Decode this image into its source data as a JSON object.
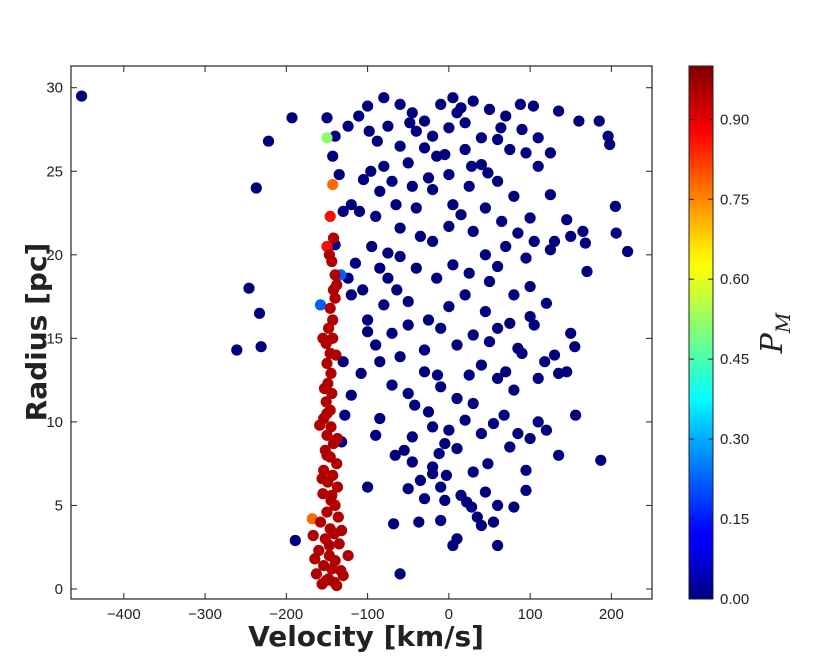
{
  "chart_data": {
    "type": "scatter",
    "xlabel": "Velocity [km/s]",
    "ylabel": "Radius [pc]",
    "xlim": [
      -465,
      250
    ],
    "ylim": [
      -0.6,
      31.3
    ],
    "x_ticks": [
      -400,
      -300,
      -200,
      -100,
      0,
      100,
      200
    ],
    "x_tick_labels": [
      "−400",
      "−300",
      "−200",
      "−100",
      "0",
      "100",
      "200"
    ],
    "y_ticks": [
      0,
      5,
      10,
      15,
      20,
      25,
      30
    ],
    "y_tick_labels": [
      "0",
      "5",
      "10",
      "15",
      "20",
      "25",
      "30"
    ],
    "grid": false,
    "colorbar": {
      "label": "P",
      "label_subscript": "M",
      "colormap": "jet",
      "range": [
        0,
        1
      ],
      "ticks": [
        0.0,
        0.15,
        0.3,
        0.45,
        0.6,
        0.75,
        0.9
      ],
      "tick_labels": [
        "0.00",
        "0.15",
        "0.30",
        "0.45",
        "0.60",
        "0.75",
        "0.90"
      ]
    },
    "series": [
      {
        "color_value": 0.0,
        "color": "#00007f",
        "points": [
          [
            -452,
            29.5
          ],
          [
            -193,
            28.2
          ],
          [
            -222,
            26.8
          ],
          [
            -237,
            24.0
          ],
          [
            -246,
            18.0
          ],
          [
            -233,
            16.5
          ],
          [
            -261,
            14.3
          ],
          [
            -231,
            14.5
          ],
          [
            -189,
            2.9
          ],
          [
            -60,
            0.9
          ],
          [
            -68,
            3.9
          ],
          [
            -37,
            4.0
          ],
          [
            60,
            2.6
          ],
          [
            40,
            3.8
          ],
          [
            35,
            4.3
          ],
          [
            55,
            4.0
          ],
          [
            28,
            4.9
          ],
          [
            -50,
            6.0
          ],
          [
            -45,
            7.6
          ],
          [
            -10,
            6.1
          ],
          [
            10,
            3.0
          ],
          [
            5,
            2.6
          ],
          [
            -100,
            6.1
          ],
          [
            80,
            4.9
          ],
          [
            95,
            5.9
          ],
          [
            95,
            7.1
          ],
          [
            135,
            8.0
          ],
          [
            187,
            7.7
          ],
          [
            156,
            10.4
          ],
          [
            110,
            10.0
          ],
          [
            100,
            9.0
          ],
          [
            75,
            8.5
          ],
          [
            60,
            5.0
          ],
          [
            45,
            5.8
          ],
          [
            22,
            5.2
          ],
          [
            -3,
            6.8
          ],
          [
            -12,
            8.1
          ],
          [
            -20,
            9.7
          ],
          [
            -66,
            8.0
          ],
          [
            -42,
            11.0
          ],
          [
            -132,
            8.8
          ],
          [
            -128,
            10.4
          ],
          [
            -120,
            11.6
          ],
          [
            -90,
            9.2
          ],
          [
            -85,
            13.6
          ],
          [
            -70,
            12.2
          ],
          [
            -60,
            13.9
          ],
          [
            -50,
            11.7
          ],
          [
            -30,
            13.0
          ],
          [
            -10,
            12.1
          ],
          [
            10,
            11.4
          ],
          [
            25,
            12.8
          ],
          [
            40,
            13.4
          ],
          [
            60,
            12.6
          ],
          [
            80,
            11.9
          ],
          [
            110,
            12.6
          ],
          [
            135,
            12.9
          ],
          [
            150,
            15.3
          ],
          [
            118,
            13.6
          ],
          [
            105,
            15.8
          ],
          [
            130,
            14.0
          ],
          [
            155,
            14.5
          ],
          [
            170,
            19.0
          ],
          [
            125,
            20.3
          ],
          [
            95,
            19.8
          ],
          [
            70,
            20.5
          ],
          [
            50,
            18.4
          ],
          [
            20,
            17.6
          ],
          [
            0,
            16.9
          ],
          [
            -25,
            16.1
          ],
          [
            -50,
            17.2
          ],
          [
            -75,
            18.6
          ],
          [
            -100,
            16.1
          ],
          [
            -120,
            17.6
          ],
          [
            -130,
            13.6
          ],
          [
            -108,
            12.9
          ],
          [
            -106,
            17.9
          ],
          [
            -95,
            20.5
          ],
          [
            -90,
            22.3
          ],
          [
            -110,
            22.6
          ],
          [
            -120,
            23.0
          ],
          [
            -105,
            24.5
          ],
          [
            -80,
            25.3
          ],
          [
            -60,
            26.5
          ],
          [
            -40,
            27.4
          ],
          [
            -30,
            28.0
          ],
          [
            -10,
            29.0
          ],
          [
            10,
            28.5
          ],
          [
            30,
            29.2
          ],
          [
            50,
            28.7
          ],
          [
            70,
            28.3
          ],
          [
            90,
            27.5
          ],
          [
            110,
            27.0
          ],
          [
            135,
            28.6
          ],
          [
            160,
            28.0
          ],
          [
            185,
            28.0
          ],
          [
            196,
            27.1
          ],
          [
            198,
            26.6
          ],
          [
            125,
            26.1
          ],
          [
            110,
            25.3
          ],
          [
            125,
            23.6
          ],
          [
            145,
            22.1
          ],
          [
            165,
            21.4
          ],
          [
            205,
            22.9
          ],
          [
            206,
            21.3
          ],
          [
            220,
            20.2
          ],
          [
            168,
            20.7
          ],
          [
            150,
            21.1
          ],
          [
            130,
            20.8
          ],
          [
            100,
            22.2
          ],
          [
            80,
            23.5
          ],
          [
            60,
            24.4
          ],
          [
            40,
            25.4
          ],
          [
            20,
            26.3
          ],
          [
            0,
            24.8
          ],
          [
            -20,
            23.9
          ],
          [
            -40,
            22.8
          ],
          [
            -60,
            21.6
          ],
          [
            -75,
            20.1
          ],
          [
            -85,
            19.2
          ],
          [
            -64,
            17.9
          ],
          [
            -40,
            19.2
          ],
          [
            -20,
            20.8
          ],
          [
            0,
            21.7
          ],
          [
            15,
            22.4
          ],
          [
            30,
            21.4
          ],
          [
            45,
            20.0
          ],
          [
            60,
            19.3
          ],
          [
            80,
            17.6
          ],
          [
            100,
            18.1
          ],
          [
            120,
            17.1
          ],
          [
            100,
            16.3
          ],
          [
            85,
            14.4
          ],
          [
            70,
            13.0
          ],
          [
            50,
            14.8
          ],
          [
            30,
            15.2
          ],
          [
            10,
            14.6
          ],
          [
            -10,
            15.6
          ],
          [
            -30,
            14.3
          ],
          [
            -50,
            15.8
          ],
          [
            -70,
            15.3
          ],
          [
            -90,
            14.6
          ],
          [
            -100,
            15.4
          ],
          [
            -80,
            17.0
          ],
          [
            -60,
            19.9
          ],
          [
            -35,
            21.1
          ],
          [
            -15,
            18.6
          ],
          [
            5,
            19.4
          ],
          [
            25,
            18.9
          ],
          [
            45,
            16.6
          ],
          [
            60,
            15.6
          ],
          [
            75,
            15.9
          ],
          [
            90,
            14.1
          ],
          [
            -45,
            9.1
          ],
          [
            -25,
            10.6
          ],
          [
            0,
            9.5
          ],
          [
            20,
            10.1
          ],
          [
            40,
            9.3
          ],
          [
            55,
            9.9
          ],
          [
            68,
            10.4
          ],
          [
            48,
            7.5
          ],
          [
            30,
            7.0
          ],
          [
            10,
            8.4
          ],
          [
            -5,
            8.7
          ],
          [
            -20,
            7.3
          ],
          [
            -35,
            6.5
          ],
          [
            -55,
            8.3
          ],
          [
            -85,
            10.2
          ],
          [
            -100,
            28.9
          ],
          [
            -80,
            29.4
          ],
          [
            -60,
            29.0
          ],
          [
            -45,
            28.5
          ],
          [
            -20,
            27.1
          ],
          [
            0,
            27.6
          ],
          [
            20,
            27.9
          ],
          [
            40,
            27.0
          ],
          [
            60,
            26.9
          ],
          [
            75,
            26.3
          ],
          [
            95,
            26.1
          ],
          [
            5,
            29.4
          ],
          [
            15,
            28.8
          ],
          [
            -15,
            25.9
          ],
          [
            -30,
            26.4
          ],
          [
            -50,
            25.5
          ],
          [
            -70,
            24.4
          ],
          [
            -85,
            23.8
          ],
          [
            -65,
            23.0
          ],
          [
            -45,
            24.1
          ],
          [
            -25,
            24.6
          ],
          [
            5,
            23.0
          ],
          [
            25,
            24.1
          ],
          [
            45,
            22.8
          ],
          [
            65,
            22.0
          ],
          [
            85,
            21.3
          ],
          [
            105,
            20.8
          ],
          [
            -124,
            18.6
          ],
          [
            -115,
            19.5
          ],
          [
            -140,
            20.6
          ],
          [
            -130,
            22.6
          ],
          [
            -135,
            24.8
          ],
          [
            -143,
            25.9
          ],
          [
            -140,
            27.1
          ],
          [
            -124,
            27.7
          ],
          [
            -111,
            28.3
          ],
          [
            -98,
            27.4
          ],
          [
            -150,
            28.2
          ],
          [
            -10,
            4.1
          ],
          [
            -5,
            5.3
          ],
          [
            15,
            5.6
          ],
          [
            -20,
            6.9
          ],
          [
            -30,
            5.4
          ],
          [
            -14,
            12.8
          ],
          [
            30,
            11.1
          ],
          [
            85,
            9.3
          ],
          [
            120,
            9.5
          ],
          [
            145,
            13.0
          ],
          [
            -48,
            27.9
          ],
          [
            -5,
            26.0
          ],
          [
            28,
            25.3
          ],
          [
            48,
            24.9
          ],
          [
            -75,
            27.7
          ],
          [
            -96,
            25.0
          ],
          [
            -88,
            26.8
          ],
          [
            64,
            27.6
          ],
          [
            88,
            29.0
          ],
          [
            104,
            28.9
          ]
        ]
      },
      {
        "color_value": 0.5,
        "color": "#8aff6e",
        "points": [
          [
            -150,
            27.0
          ]
        ]
      },
      {
        "color_value": 0.85,
        "color": "#ff6a00",
        "points": [
          [
            -143,
            24.2
          ],
          [
            -168,
            4.2
          ]
        ]
      },
      {
        "color_value": 0.9,
        "color": "#f51000",
        "points": [
          [
            -146,
            22.3
          ],
          [
            -150,
            20.5
          ]
        ]
      },
      {
        "color_value": 0.15,
        "color": "#0060ff",
        "points": [
          [
            -133,
            18.8
          ],
          [
            -158,
            17.0
          ]
        ]
      },
      {
        "color_value": 0.97,
        "color": "#b00000",
        "points": [
          [
            -142,
            21.0
          ],
          [
            -147,
            20.0
          ],
          [
            -144,
            19.6
          ],
          [
            -140,
            18.8
          ],
          [
            -138,
            18.2
          ],
          [
            -142,
            17.9
          ],
          [
            -140,
            17.4
          ],
          [
            -146,
            16.8
          ],
          [
            -143,
            16.1
          ],
          [
            -148,
            15.6
          ],
          [
            -143,
            15.0
          ],
          [
            -151,
            14.7
          ],
          [
            -146,
            14.1
          ],
          [
            -150,
            13.5
          ],
          [
            -145,
            12.9
          ],
          [
            -149,
            12.3
          ],
          [
            -144,
            11.7
          ],
          [
            -151,
            11.2
          ],
          [
            -146,
            10.7
          ],
          [
            -154,
            10.2
          ],
          [
            -145,
            9.7
          ],
          [
            -150,
            9.2
          ],
          [
            -142,
            8.7
          ],
          [
            -152,
            8.3
          ],
          [
            -146,
            7.9
          ],
          [
            -138,
            7.5
          ],
          [
            -154,
            7.1
          ],
          [
            -143,
            6.8
          ],
          [
            -149,
            6.4
          ],
          [
            -137,
            6.1
          ],
          [
            -155,
            5.7
          ],
          [
            -145,
            5.3
          ],
          [
            -140,
            5.0
          ],
          [
            -150,
            4.6
          ],
          [
            -136,
            4.3
          ],
          [
            -158,
            4.0
          ],
          [
            -146,
            3.6
          ],
          [
            -141,
            3.3
          ],
          [
            -152,
            3.0
          ],
          [
            -135,
            2.7
          ],
          [
            -160,
            2.3
          ],
          [
            -147,
            2.0
          ],
          [
            -140,
            1.7
          ],
          [
            -154,
            1.4
          ],
          [
            -133,
            1.1
          ],
          [
            -163,
            0.9
          ],
          [
            -148,
            0.6
          ],
          [
            -141,
            0.4
          ],
          [
            -156,
            0.3
          ],
          [
            -138,
            0.2
          ],
          [
            -151,
            0.5
          ],
          [
            -144,
            1.2
          ],
          [
            -147,
            2.6
          ],
          [
            -144,
            5.6
          ],
          [
            -150,
            8.0
          ],
          [
            -150,
            10.5
          ],
          [
            -153,
            12.0
          ],
          [
            -137,
            9.0
          ],
          [
            -156,
            6.6
          ],
          [
            -132,
            3.5
          ],
          [
            -165,
            1.8
          ],
          [
            -124,
            2.0
          ],
          [
            -167,
            3.2
          ],
          [
            -130,
            0.8
          ],
          [
            -159,
            9.8
          ],
          [
            -155,
            15.0
          ],
          [
            -139,
            14.0
          ]
        ]
      }
    ]
  }
}
